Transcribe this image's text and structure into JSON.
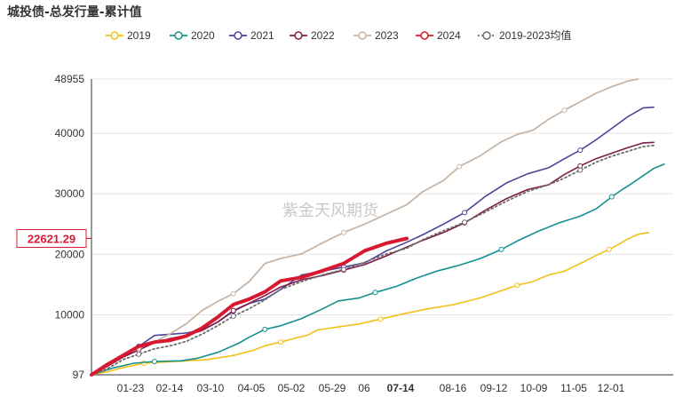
{
  "title": "城投债-总发行量-累计值",
  "watermark": "紫金天风期货",
  "chart_data": {
    "type": "line",
    "title": "城投债-总发行量-累计值",
    "x_ticks": [
      "01-23",
      "02-14",
      "03-10",
      "04-05",
      "05-02",
      "05-29",
      "06",
      "07-14",
      "08-16",
      "09-12",
      "10-09",
      "11-05",
      "12-01"
    ],
    "highlight_x_tick": "07-14",
    "y_ticks": [
      97,
      10000,
      20000,
      30000,
      40000,
      48955
    ],
    "ylim": [
      97,
      48955
    ],
    "current_value_label": "22621.29",
    "highlight_color": "#d7192f",
    "grid": "horizontal",
    "legend_position": "top",
    "series": [
      {
        "name": "2019",
        "color": "#f2c118",
        "width": 1.6,
        "dashed": false,
        "points": [
          [
            0,
            97
          ],
          [
            0.03,
            600
          ],
          [
            0.06,
            1300
          ],
          [
            0.1,
            2000
          ],
          [
            0.16,
            2300
          ],
          [
            0.22,
            2600
          ],
          [
            0.27,
            3300
          ],
          [
            0.31,
            4200
          ],
          [
            0.33,
            4900
          ],
          [
            0.36,
            5500
          ],
          [
            0.39,
            6200
          ],
          [
            0.41,
            6600
          ],
          [
            0.43,
            7500
          ],
          [
            0.47,
            8000
          ],
          [
            0.51,
            8500
          ],
          [
            0.55,
            9300
          ],
          [
            0.59,
            10100
          ],
          [
            0.64,
            11000
          ],
          [
            0.69,
            11700
          ],
          [
            0.74,
            12800
          ],
          [
            0.78,
            14000
          ],
          [
            0.81,
            14900
          ],
          [
            0.84,
            15500
          ],
          [
            0.87,
            16600
          ],
          [
            0.9,
            17200
          ],
          [
            0.93,
            18500
          ],
          [
            0.96,
            19800
          ],
          [
            0.985,
            20800
          ],
          [
            1.0,
            21500
          ],
          [
            1.02,
            22500
          ],
          [
            1.04,
            23300
          ],
          [
            1.06,
            23600
          ]
        ]
      },
      {
        "name": "2020",
        "color": "#15908e",
        "width": 1.6,
        "dashed": false,
        "points": [
          [
            0,
            97
          ],
          [
            0.04,
            1200
          ],
          [
            0.08,
            2000
          ],
          [
            0.12,
            2300
          ],
          [
            0.17,
            2400
          ],
          [
            0.2,
            2800
          ],
          [
            0.24,
            3800
          ],
          [
            0.28,
            5300
          ],
          [
            0.3,
            6300
          ],
          [
            0.33,
            7600
          ],
          [
            0.36,
            8200
          ],
          [
            0.4,
            9400
          ],
          [
            0.44,
            11000
          ],
          [
            0.47,
            12300
          ],
          [
            0.51,
            12800
          ],
          [
            0.54,
            13700
          ],
          [
            0.58,
            14700
          ],
          [
            0.62,
            16100
          ],
          [
            0.66,
            17300
          ],
          [
            0.7,
            18200
          ],
          [
            0.74,
            19300
          ],
          [
            0.78,
            20800
          ],
          [
            0.81,
            22200
          ],
          [
            0.85,
            23800
          ],
          [
            0.89,
            25200
          ],
          [
            0.93,
            26300
          ],
          [
            0.96,
            27500
          ],
          [
            0.99,
            29500
          ],
          [
            1.01,
            30700
          ],
          [
            1.03,
            31800
          ],
          [
            1.05,
            33000
          ],
          [
            1.07,
            34200
          ],
          [
            1.09,
            34900
          ]
        ]
      },
      {
        "name": "2021",
        "color": "#4d449a",
        "width": 1.6,
        "dashed": false,
        "points": [
          [
            0,
            97
          ],
          [
            0.03,
            1500
          ],
          [
            0.06,
            3400
          ],
          [
            0.09,
            4800
          ],
          [
            0.12,
            6600
          ],
          [
            0.15,
            6800
          ],
          [
            0.18,
            7000
          ],
          [
            0.21,
            7500
          ],
          [
            0.24,
            8800
          ],
          [
            0.27,
            10600
          ],
          [
            0.3,
            11900
          ],
          [
            0.33,
            12600
          ],
          [
            0.36,
            14200
          ],
          [
            0.4,
            16600
          ],
          [
            0.44,
            17200
          ],
          [
            0.48,
            17900
          ],
          [
            0.52,
            18600
          ],
          [
            0.56,
            20500
          ],
          [
            0.6,
            22000
          ],
          [
            0.63,
            23200
          ],
          [
            0.67,
            25000
          ],
          [
            0.71,
            26900
          ],
          [
            0.75,
            29600
          ],
          [
            0.79,
            31800
          ],
          [
            0.83,
            33300
          ],
          [
            0.87,
            34300
          ],
          [
            0.9,
            35800
          ],
          [
            0.93,
            37200
          ],
          [
            0.96,
            38900
          ],
          [
            0.99,
            40800
          ],
          [
            1.02,
            42700
          ],
          [
            1.05,
            44200
          ],
          [
            1.07,
            44300
          ]
        ]
      },
      {
        "name": "2022",
        "color": "#7d1a48",
        "width": 1.6,
        "dashed": false,
        "points": [
          [
            0,
            97
          ],
          [
            0.03,
            1500
          ],
          [
            0.06,
            3000
          ],
          [
            0.09,
            4200
          ],
          [
            0.12,
            5400
          ],
          [
            0.15,
            6100
          ],
          [
            0.18,
            6600
          ],
          [
            0.21,
            7400
          ],
          [
            0.24,
            8800
          ],
          [
            0.27,
            10700
          ],
          [
            0.3,
            11900
          ],
          [
            0.33,
            13200
          ],
          [
            0.36,
            14600
          ],
          [
            0.4,
            15800
          ],
          [
            0.44,
            16500
          ],
          [
            0.48,
            17400
          ],
          [
            0.52,
            18300
          ],
          [
            0.56,
            19700
          ],
          [
            0.6,
            21200
          ],
          [
            0.63,
            22300
          ],
          [
            0.67,
            23600
          ],
          [
            0.71,
            25200
          ],
          [
            0.75,
            27300
          ],
          [
            0.79,
            29200
          ],
          [
            0.83,
            30700
          ],
          [
            0.87,
            31500
          ],
          [
            0.9,
            33200
          ],
          [
            0.93,
            34600
          ],
          [
            0.96,
            35800
          ],
          [
            0.99,
            36700
          ],
          [
            1.02,
            37600
          ],
          [
            1.05,
            38400
          ],
          [
            1.07,
            38500
          ]
        ]
      },
      {
        "name": "2023",
        "color": "#c8b6a6",
        "width": 1.8,
        "dashed": false,
        "points": [
          [
            0,
            97
          ],
          [
            0.03,
            1800
          ],
          [
            0.06,
            3400
          ],
          [
            0.09,
            4500
          ],
          [
            0.12,
            5500
          ],
          [
            0.15,
            6900
          ],
          [
            0.18,
            8500
          ],
          [
            0.21,
            10700
          ],
          [
            0.24,
            12200
          ],
          [
            0.27,
            13500
          ],
          [
            0.3,
            15500
          ],
          [
            0.33,
            18500
          ],
          [
            0.36,
            19300
          ],
          [
            0.4,
            20100
          ],
          [
            0.44,
            21900
          ],
          [
            0.48,
            23600
          ],
          [
            0.52,
            25000
          ],
          [
            0.56,
            26600
          ],
          [
            0.6,
            28200
          ],
          [
            0.63,
            30300
          ],
          [
            0.67,
            32200
          ],
          [
            0.7,
            34500
          ],
          [
            0.74,
            36300
          ],
          [
            0.78,
            38600
          ],
          [
            0.81,
            39800
          ],
          [
            0.84,
            40500
          ],
          [
            0.87,
            42300
          ],
          [
            0.9,
            43800
          ],
          [
            0.93,
            45200
          ],
          [
            0.96,
            46600
          ],
          [
            0.99,
            47700
          ],
          [
            1.02,
            48600
          ],
          [
            1.04,
            48955
          ]
        ]
      },
      {
        "name": "2024",
        "color": "#d7192f",
        "width": 4,
        "dashed": false,
        "points": [
          [
            0,
            97
          ],
          [
            0.03,
            1800
          ],
          [
            0.06,
            3300
          ],
          [
            0.09,
            4800
          ],
          [
            0.12,
            5500
          ],
          [
            0.15,
            5800
          ],
          [
            0.18,
            6500
          ],
          [
            0.21,
            7800
          ],
          [
            0.24,
            9600
          ],
          [
            0.27,
            11700
          ],
          [
            0.3,
            12600
          ],
          [
            0.33,
            13800
          ],
          [
            0.36,
            15600
          ],
          [
            0.4,
            16200
          ],
          [
            0.44,
            17300
          ],
          [
            0.48,
            18500
          ],
          [
            0.52,
            20600
          ],
          [
            0.56,
            21800
          ],
          [
            0.6,
            22621.29
          ]
        ]
      },
      {
        "name": "2019-2023均值",
        "color": "#6d6d6d",
        "width": 1.8,
        "dashed": true,
        "points": [
          [
            0,
            97
          ],
          [
            0.03,
            1100
          ],
          [
            0.06,
            2600
          ],
          [
            0.09,
            3500
          ],
          [
            0.12,
            4400
          ],
          [
            0.15,
            4900
          ],
          [
            0.18,
            5600
          ],
          [
            0.21,
            6800
          ],
          [
            0.24,
            8200
          ],
          [
            0.27,
            9800
          ],
          [
            0.3,
            11000
          ],
          [
            0.33,
            12500
          ],
          [
            0.36,
            14200
          ],
          [
            0.4,
            15500
          ],
          [
            0.44,
            16600
          ],
          [
            0.48,
            17500
          ],
          [
            0.52,
            18700
          ],
          [
            0.56,
            20000
          ],
          [
            0.6,
            21000
          ],
          [
            0.63,
            22400
          ],
          [
            0.67,
            23900
          ],
          [
            0.71,
            25300
          ],
          [
            0.75,
            27000
          ],
          [
            0.79,
            28800
          ],
          [
            0.83,
            30400
          ],
          [
            0.87,
            31500
          ],
          [
            0.9,
            32600
          ],
          [
            0.93,
            33900
          ],
          [
            0.96,
            35200
          ],
          [
            0.99,
            36200
          ],
          [
            1.02,
            37000
          ],
          [
            1.05,
            37800
          ],
          [
            1.07,
            38000
          ]
        ]
      }
    ]
  }
}
